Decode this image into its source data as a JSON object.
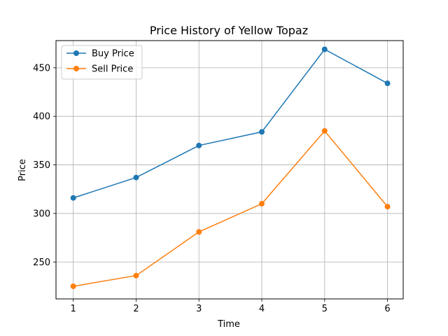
{
  "chart_data": {
    "type": "line",
    "title": "Price History of Yellow Topaz",
    "xlabel": "Time",
    "ylabel": "Price",
    "x": [
      1,
      2,
      3,
      4,
      5,
      6
    ],
    "xticks": [
      "1",
      "2",
      "3",
      "4",
      "5",
      "6"
    ],
    "yticks": [
      "250",
      "300",
      "350",
      "400",
      "450"
    ],
    "xlim": [
      0.725,
      6.25
    ],
    "ylim": [
      212,
      478
    ],
    "grid": true,
    "legend_position": "top-left",
    "series": [
      {
        "name": "Buy Price",
        "color": "#1f77b4",
        "values": [
          316,
          337,
          370,
          384,
          469,
          434
        ]
      },
      {
        "name": "Sell Price",
        "color": "#ff7f0e",
        "values": [
          225,
          236,
          281,
          310,
          385,
          307
        ]
      }
    ]
  }
}
